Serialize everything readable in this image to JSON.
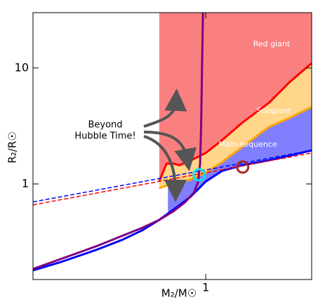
{
  "chart_data": {
    "type": "line",
    "xlabel": "M₂/M☉",
    "ylabel": "R₂/R☉",
    "xscale": "log",
    "yscale": "log",
    "xlim": [
      0.15,
      3.2
    ],
    "ylim": [
      0.15,
      30
    ],
    "xticks": [
      1
    ],
    "yticks": [
      1,
      10
    ],
    "areas": [
      {
        "label": "Red giant",
        "color": "#fa8080",
        "fill_to": "top",
        "x": [
          0.6,
          0.65,
          0.7,
          0.75,
          0.85,
          1.0,
          1.2,
          1.5,
          2.0,
          2.5,
          3.2
        ],
        "lower": [
          1.05,
          1.5,
          1.5,
          1.45,
          1.6,
          1.85,
          2.4,
          3.4,
          5,
          7.5,
          11
        ]
      },
      {
        "label": "Subgiant",
        "color": "#ffd68a",
        "x": [
          0.6,
          0.65,
          0.7,
          0.75,
          0.85,
          1.0,
          1.2,
          1.5,
          2.0,
          2.5,
          3.2
        ],
        "lower": [
          0.92,
          0.97,
          1.0,
          1.02,
          1.1,
          1.25,
          1.55,
          2.1,
          3.1,
          3.7,
          4.6
        ],
        "upper": [
          1.05,
          1.5,
          1.5,
          1.45,
          1.6,
          1.85,
          2.4,
          3.4,
          5,
          7.5,
          11
        ]
      },
      {
        "label": "Main-sequence",
        "color": "#8080ff",
        "x": [
          0.66,
          0.7,
          0.75,
          0.85,
          1.0,
          1.2,
          1.5,
          2.0,
          2.5,
          3.2
        ],
        "lower": [
          0.57,
          0.6,
          0.66,
          0.78,
          1.05,
          1.3,
          1.45,
          1.6,
          1.75,
          1.95
        ],
        "upper": [
          0.98,
          1.0,
          1.02,
          1.1,
          1.25,
          1.55,
          2.1,
          3.1,
          3.7,
          4.6
        ]
      }
    ],
    "series": [
      {
        "color": "#ff0000",
        "width": 3,
        "x": [
          0.6,
          0.65,
          0.7,
          0.75,
          0.85,
          1.0,
          1.2,
          1.5,
          2.0,
          2.5,
          3.2
        ],
        "values": [
          1.05,
          1.5,
          1.5,
          1.45,
          1.6,
          1.85,
          2.4,
          3.4,
          5,
          7.5,
          11
        ]
      },
      {
        "color": "#ffa500",
        "width": 3,
        "x": [
          0.6,
          0.65,
          0.7,
          0.75,
          0.85,
          1.0,
          1.2,
          1.5,
          2.0,
          2.5,
          3.2
        ],
        "values": [
          0.92,
          0.97,
          1.0,
          1.02,
          1.1,
          1.25,
          1.55,
          2.1,
          3.1,
          3.7,
          4.6
        ]
      },
      {
        "color": "#0000ff",
        "width": 3,
        "x": [
          0.15,
          0.2,
          0.3,
          0.4,
          0.5,
          0.6,
          0.7,
          0.85,
          1.0,
          1.2,
          1.5,
          2.0,
          2.5,
          3.2
        ],
        "values": [
          0.18,
          0.21,
          0.27,
          0.33,
          0.4,
          0.49,
          0.6,
          0.78,
          1.05,
          1.3,
          1.45,
          1.6,
          1.75,
          1.95
        ]
      },
      {
        "color": "#ff0000",
        "width": 1.5,
        "dash": true,
        "x": [
          0.15,
          3.2
        ],
        "values": [
          0.66,
          1.85
        ]
      },
      {
        "color": "#0000ff",
        "width": 1.5,
        "dash": true,
        "x": [
          0.15,
          3.2
        ],
        "values": [
          0.7,
          1.95
        ]
      },
      {
        "color": "#800080",
        "width": 3,
        "x": [
          0.15,
          0.3,
          0.5,
          0.6,
          0.7,
          0.8,
          0.88,
          0.92,
          0.94,
          0.95,
          0.96,
          0.97
        ],
        "values": [
          0.185,
          0.29,
          0.42,
          0.49,
          0.58,
          0.7,
          0.85,
          1.05,
          1.5,
          3,
          10,
          30
        ]
      }
    ],
    "markers": [
      {
        "x": 0.93,
        "y": 1.2,
        "color": "#00e5ee"
      },
      {
        "x": 1.5,
        "y": 1.4,
        "color": "#a52a2a"
      }
    ],
    "annotation": [
      "Beyond",
      "Hubble Time!"
    ]
  }
}
